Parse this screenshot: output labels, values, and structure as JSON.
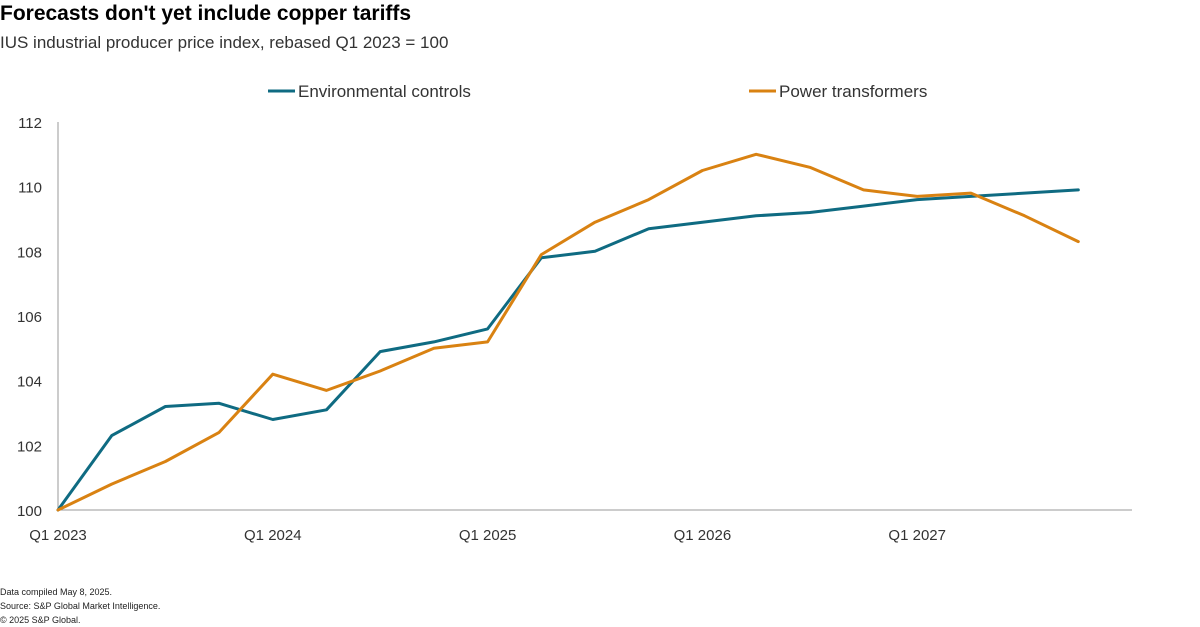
{
  "header": {
    "title": "Forecasts don't yet include copper tariffs",
    "subtitle": "IUS industrial producer price index, rebased Q1 2023 = 100"
  },
  "footer": {
    "line1": "Data compiled May 8, 2025.",
    "line2": "Source: S&P Global Market Intelligence.",
    "line3": "© 2025 S&P Global."
  },
  "chart_data": {
    "type": "line",
    "title": "Forecasts don't yet include copper tariffs",
    "subtitle": "IUS industrial producer price index, rebased Q1 2023 = 100",
    "x_tick_labels": [
      "Q1 2023",
      "Q1 2024",
      "Q1 2025",
      "Q1 2026",
      "Q1 2027"
    ],
    "x": [
      "Q1 2023",
      "Q2 2023",
      "Q3 2023",
      "Q4 2023",
      "Q1 2024",
      "Q2 2024",
      "Q3 2024",
      "Q4 2024",
      "Q1 2025",
      "Q2 2025",
      "Q3 2025",
      "Q4 2025",
      "Q1 2026",
      "Q2 2026",
      "Q3 2026",
      "Q4 2026",
      "Q1 2027",
      "Q2 2027",
      "Q3 2027",
      "Q4 2027"
    ],
    "ylim": [
      100,
      112
    ],
    "yticks": [
      100,
      102,
      104,
      106,
      108,
      110,
      112
    ],
    "grid": false,
    "legend_position": "top",
    "series": [
      {
        "name": "Environmental controls",
        "color": "#0f6b82",
        "values": [
          100.0,
          102.3,
          103.2,
          103.3,
          102.8,
          103.1,
          104.9,
          105.2,
          105.6,
          107.8,
          108.0,
          108.7,
          108.9,
          109.1,
          109.2,
          109.4,
          109.6,
          109.7,
          109.8,
          109.9
        ]
      },
      {
        "name": "Power transformers",
        "color": "#d98212",
        "values": [
          100.0,
          100.8,
          101.5,
          102.4,
          104.2,
          103.7,
          104.3,
          105.0,
          105.2,
          107.9,
          108.9,
          109.6,
          110.5,
          111.0,
          110.6,
          109.9,
          109.7,
          109.8,
          109.1,
          108.3
        ]
      }
    ]
  }
}
